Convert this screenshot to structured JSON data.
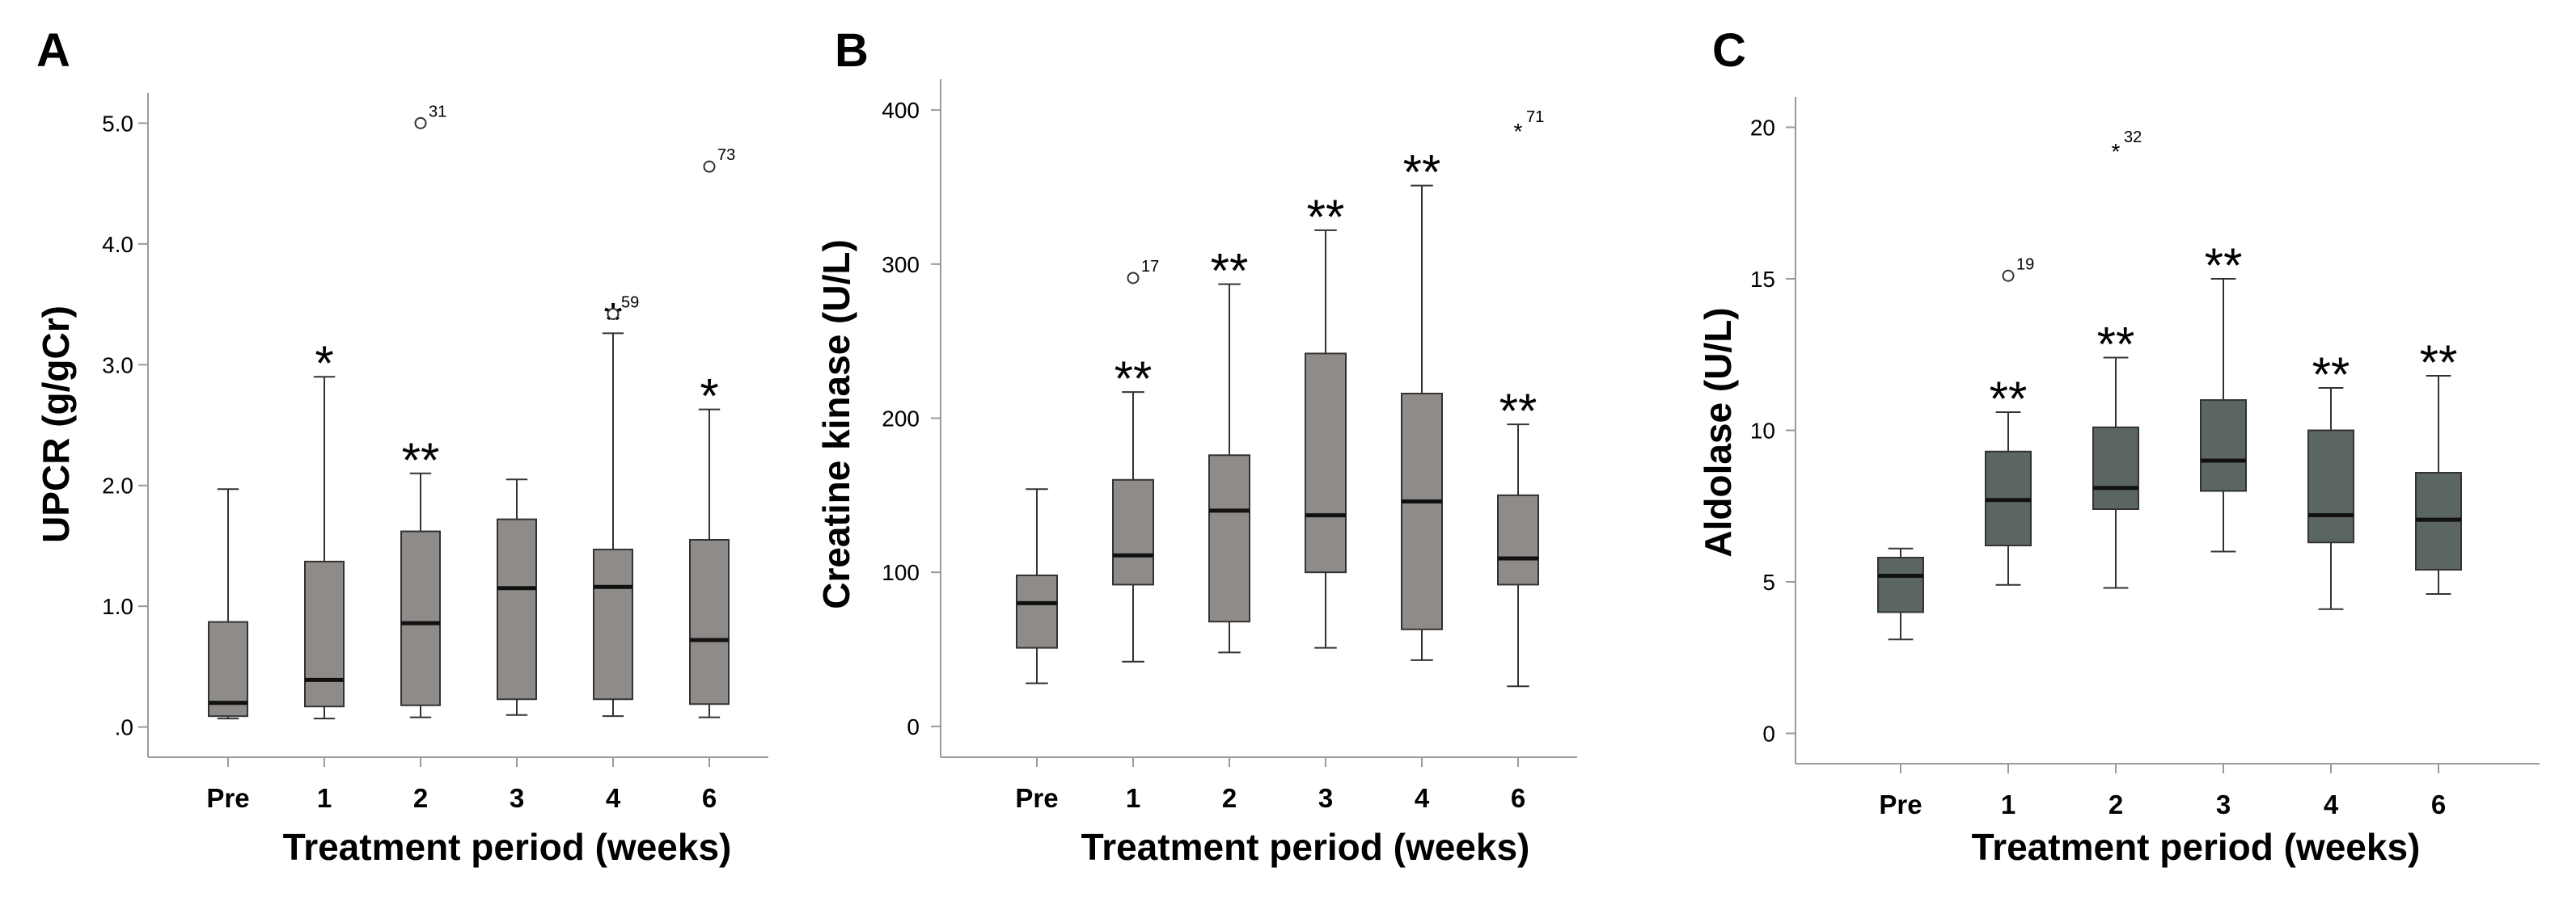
{
  "chart_data": [
    {
      "type": "box",
      "panel": "A",
      "title": "",
      "xlabel": "Treatment period (weeks)",
      "ylabel": "UPCR (g/gCr)",
      "categories": [
        "Pre",
        "1",
        "2",
        "3",
        "4",
        "6"
      ],
      "yticks": [
        0,
        1,
        2,
        3,
        4,
        5
      ],
      "ytick_labels": [
        ".0",
        "1.0",
        "2.0",
        "3.0",
        "4.0",
        "5.0"
      ],
      "ylim": [
        -0.25,
        5.25
      ],
      "box_color": "#8f8b89",
      "boxes": [
        {
          "category": "Pre",
          "whisker_low": 0.07,
          "q1": 0.09,
          "median": 0.2,
          "q3": 0.87,
          "whisker_high": 1.97,
          "sig": ""
        },
        {
          "category": "1",
          "whisker_low": 0.07,
          "q1": 0.17,
          "median": 0.39,
          "q3": 1.37,
          "whisker_high": 2.9,
          "sig": "*"
        },
        {
          "category": "2",
          "whisker_low": 0.08,
          "q1": 0.18,
          "median": 0.86,
          "q3": 1.62,
          "whisker_high": 2.1,
          "sig": "**"
        },
        {
          "category": "3",
          "whisker_low": 0.1,
          "q1": 0.23,
          "median": 1.15,
          "q3": 1.72,
          "whisker_high": 2.05,
          "sig": ""
        },
        {
          "category": "4",
          "whisker_low": 0.09,
          "q1": 0.23,
          "median": 1.16,
          "q3": 1.47,
          "whisker_high": 3.26,
          "sig": "*"
        },
        {
          "category": "6",
          "whisker_low": 0.08,
          "q1": 0.19,
          "median": 0.72,
          "q3": 1.55,
          "whisker_high": 2.63,
          "sig": "*"
        }
      ],
      "outliers": [
        {
          "category": "2",
          "value": 5.0,
          "label": "31",
          "marker": "circle"
        },
        {
          "category": "4",
          "value": 3.42,
          "label": "59",
          "marker": "circle"
        },
        {
          "category": "6",
          "value": 4.64,
          "label": "73",
          "marker": "circle"
        }
      ]
    },
    {
      "type": "box",
      "panel": "B",
      "title": "",
      "xlabel": "Treatment period (weeks)",
      "ylabel": "Creatine kinase (U/L)",
      "categories": [
        "Pre",
        "1",
        "2",
        "3",
        "4",
        "6"
      ],
      "yticks": [
        0,
        100,
        200,
        300,
        400
      ],
      "ytick_labels": [
        "0",
        "100",
        "200",
        "300",
        "400"
      ],
      "ylim": [
        -20,
        420
      ],
      "box_color": "#8f8b89",
      "boxes": [
        {
          "category": "Pre",
          "whisker_low": 28,
          "q1": 51,
          "median": 80,
          "q3": 98,
          "whisker_high": 154,
          "sig": ""
        },
        {
          "category": "1",
          "whisker_low": 42,
          "q1": 92,
          "median": 111,
          "q3": 160,
          "whisker_high": 217,
          "sig": "**"
        },
        {
          "category": "2",
          "whisker_low": 48,
          "q1": 68,
          "median": 140,
          "q3": 176,
          "whisker_high": 287,
          "sig": "**"
        },
        {
          "category": "3",
          "whisker_low": 51,
          "q1": 100,
          "median": 137,
          "q3": 242,
          "whisker_high": 322,
          "sig": "**"
        },
        {
          "category": "4",
          "whisker_low": 43,
          "q1": 63,
          "median": 146,
          "q3": 216,
          "whisker_high": 351,
          "sig": "**"
        },
        {
          "category": "6",
          "whisker_low": 26,
          "q1": 92,
          "median": 109,
          "q3": 150,
          "whisker_high": 196,
          "sig": "**"
        }
      ],
      "outliers": [
        {
          "category": "1",
          "value": 291,
          "label": "17",
          "marker": "circle"
        },
        {
          "category": "6",
          "value": 388,
          "label": "71",
          "marker": "star"
        }
      ]
    },
    {
      "type": "box",
      "panel": "C",
      "title": "",
      "xlabel": "Treatment period (weeks)",
      "ylabel": "Aldolase (U/L)",
      "categories": [
        "Pre",
        "1",
        "2",
        "3",
        "4",
        "6"
      ],
      "yticks": [
        0,
        5,
        10,
        15,
        20
      ],
      "ytick_labels": [
        "0",
        "5",
        "10",
        "15",
        "20"
      ],
      "ylim": [
        -1,
        21
      ],
      "box_color": "#5b6661",
      "boxes": [
        {
          "category": "Pre",
          "whisker_low": 3.1,
          "q1": 4.0,
          "median": 5.2,
          "q3": 5.8,
          "whisker_high": 6.1,
          "sig": ""
        },
        {
          "category": "1",
          "whisker_low": 4.9,
          "q1": 6.2,
          "median": 7.7,
          "q3": 9.3,
          "whisker_high": 10.6,
          "sig": "**"
        },
        {
          "category": "2",
          "whisker_low": 4.8,
          "q1": 7.4,
          "median": 8.1,
          "q3": 10.1,
          "whisker_high": 12.4,
          "sig": "**"
        },
        {
          "category": "3",
          "whisker_low": 6.0,
          "q1": 8.0,
          "median": 9.0,
          "q3": 11.0,
          "whisker_high": 15.0,
          "sig": "**"
        },
        {
          "category": "4",
          "whisker_low": 4.1,
          "q1": 6.3,
          "median": 7.2,
          "q3": 10.0,
          "whisker_high": 11.4,
          "sig": "**"
        },
        {
          "category": "6",
          "whisker_low": 4.6,
          "q1": 5.4,
          "median": 7.05,
          "q3": 8.6,
          "whisker_high": 11.8,
          "sig": "**"
        }
      ],
      "outliers": [
        {
          "category": "1",
          "value": 15.1,
          "label": "19",
          "marker": "circle"
        },
        {
          "category": "2",
          "value": 19.3,
          "label": "32",
          "marker": "star"
        }
      ]
    }
  ]
}
